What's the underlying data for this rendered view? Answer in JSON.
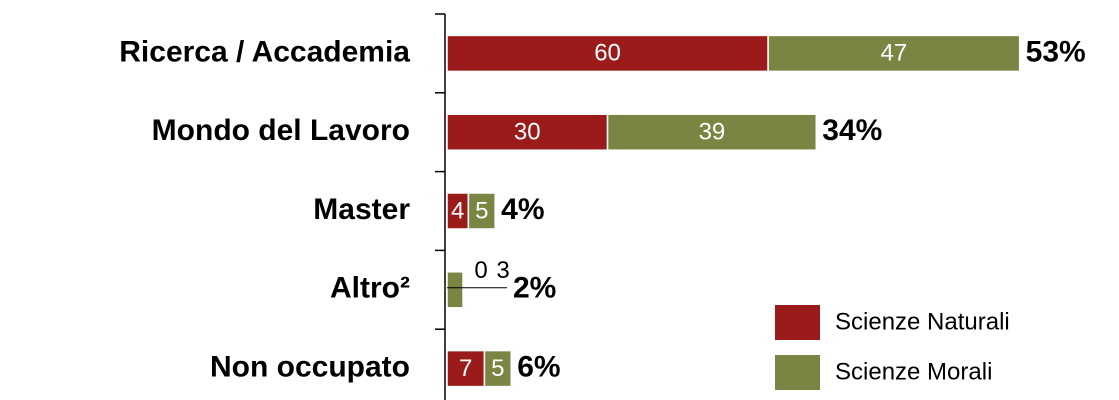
{
  "chart_data": {
    "type": "stacked-barh",
    "categories": [
      "Ricerca / Accademia",
      "Mondo del Lavoro",
      "Master",
      "Altro²",
      "Non occupato"
    ],
    "series": [
      {
        "name": "Scienze Naturali",
        "color": "#9b1b1b",
        "values": [
          60,
          30,
          4,
          0,
          7
        ]
      },
      {
        "name": "Scienze Morali",
        "color": "#7a8443",
        "values": [
          47,
          39,
          5,
          3,
          5
        ]
      }
    ],
    "share_labels": [
      "53%",
      "34%",
      "4%",
      "2%",
      "6%"
    ],
    "xlim": [
      0,
      125
    ]
  }
}
